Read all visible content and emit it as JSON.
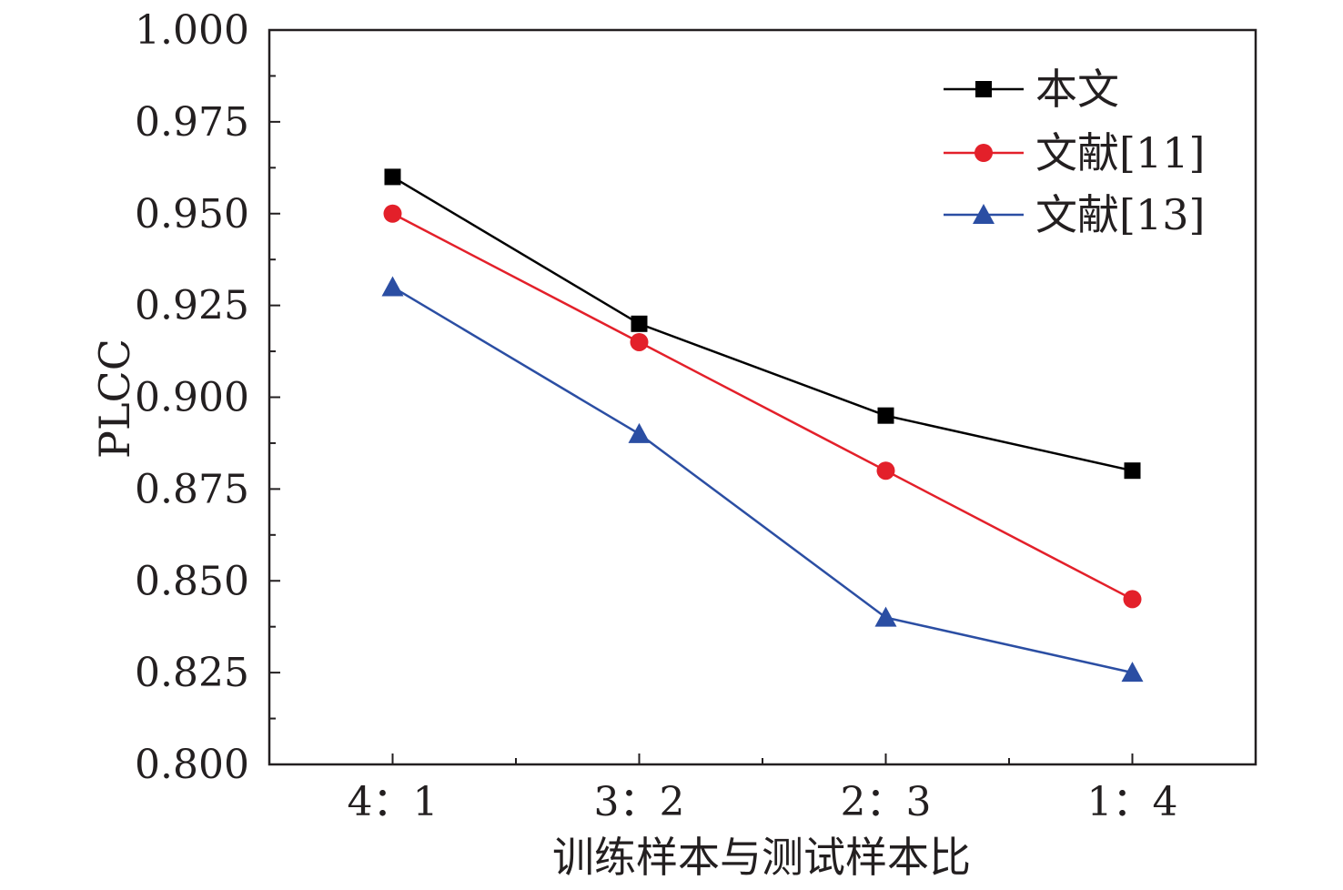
{
  "chart_data": {
    "type": "line",
    "categories": [
      "4：1",
      "3：2",
      "2：3",
      "1：4"
    ],
    "xlabel": "训练样本与测试样本比",
    "ylabel": "PLCC",
    "ylim": [
      0.8,
      1.0
    ],
    "yticks": [
      "0.800",
      "0.825",
      "0.850",
      "0.875",
      "0.900",
      "0.925",
      "0.950",
      "0.975",
      "1.000"
    ],
    "grid": false,
    "legend_position": "top-right",
    "series": [
      {
        "name": "本文",
        "values": [
          0.96,
          0.92,
          0.895,
          0.88
        ],
        "color": "#000000",
        "marker": "square"
      },
      {
        "name": "文献[11]",
        "values": [
          0.95,
          0.915,
          0.88,
          0.845
        ],
        "color": "#e3202a",
        "marker": "circle"
      },
      {
        "name": "文献[13]",
        "values": [
          0.93,
          0.89,
          0.84,
          0.825
        ],
        "color": "#2b4ea3",
        "marker": "triangle"
      }
    ]
  }
}
